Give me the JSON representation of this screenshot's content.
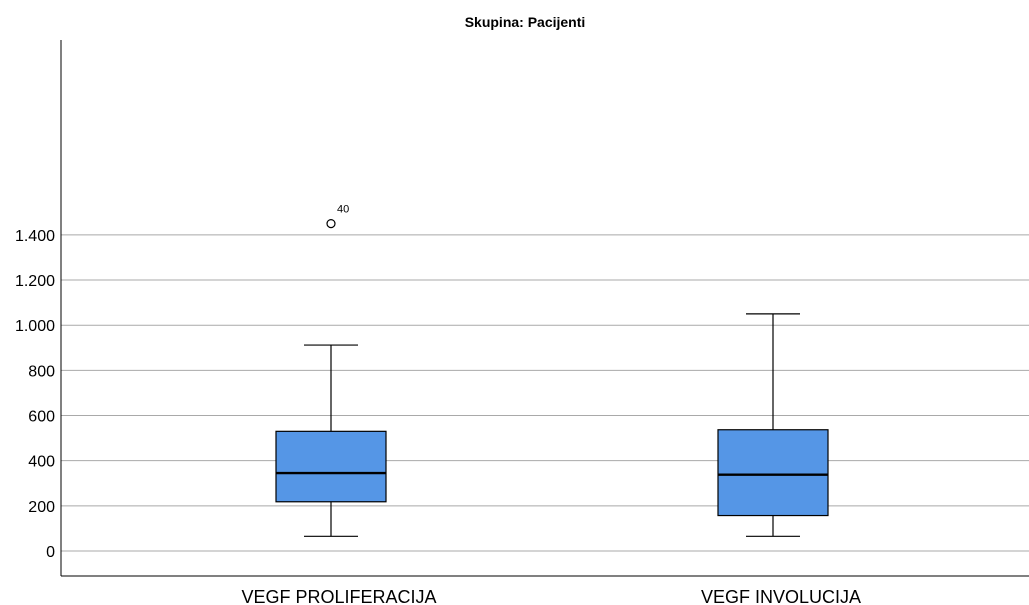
{
  "chart_data": {
    "type": "box",
    "title": "Skupina: Pacijenti",
    "xlabel": "",
    "ylabel": "",
    "ylim": [
      -80,
      1600
    ],
    "yticks": [
      0,
      200,
      400,
      600,
      800,
      1000,
      1200,
      1400
    ],
    "ytick_labels": [
      "0",
      "200",
      "400",
      "600",
      "800",
      "1.000",
      "1.200",
      "1.400"
    ],
    "grid": true,
    "box_color": "#5596e6",
    "categories": [
      "VEGF PROLIFERACIJA",
      "VEGF INVOLUCIJA"
    ],
    "boxes": [
      {
        "category": "VEGF PROLIFERACIJA",
        "whisker_low": 65,
        "q1": 218,
        "median": 345,
        "q3": 530,
        "whisker_high": 912,
        "outliers": [
          {
            "value": 1450,
            "label": "40"
          }
        ]
      },
      {
        "category": "VEGF INVOLUCIJA",
        "whisker_low": 65,
        "q1": 157,
        "median": 338,
        "q3": 537,
        "whisker_high": 1050,
        "outliers": []
      }
    ]
  }
}
